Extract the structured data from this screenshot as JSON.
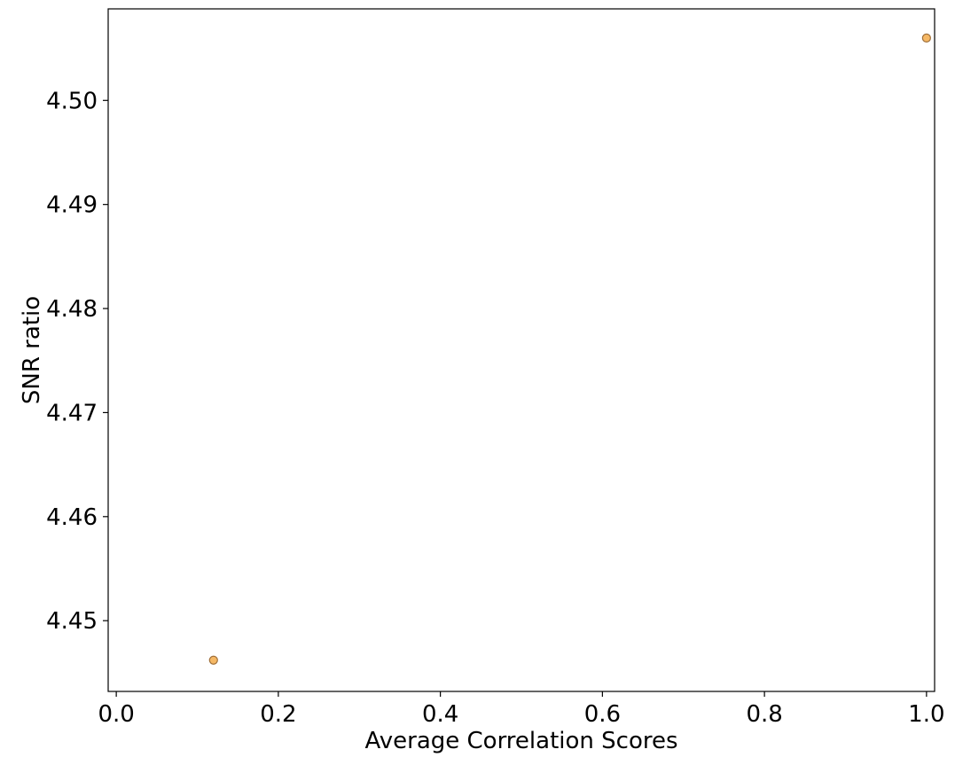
{
  "chart_data": {
    "type": "scatter",
    "title": "",
    "xlabel": "Average Correlation Scores",
    "ylabel": "SNR ratio",
    "xlim": [
      -0.01,
      1.01
    ],
    "ylim": [
      4.4432,
      4.5088
    ],
    "x_ticks": [
      0.0,
      0.2,
      0.4,
      0.6,
      0.8,
      1.0
    ],
    "x_tick_labels": [
      "0.0",
      "0.2",
      "0.4",
      "0.6",
      "0.8",
      "1.0"
    ],
    "y_ticks": [
      4.45,
      4.46,
      4.47,
      4.48,
      4.49,
      4.5
    ],
    "y_tick_labels": [
      "4.45",
      "4.46",
      "4.47",
      "4.48",
      "4.49",
      "4.50"
    ],
    "grid": false,
    "points": [
      {
        "x": 0.12,
        "y": 4.4462
      },
      {
        "x": 1.0,
        "y": 4.506
      }
    ],
    "marker_color": "#f5b865",
    "marker_edge_color": "#a0703a"
  }
}
